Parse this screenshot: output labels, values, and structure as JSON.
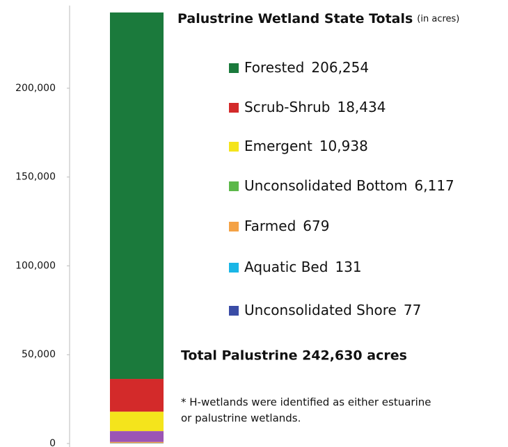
{
  "chart_data": {
    "type": "bar",
    "stacked": true,
    "title": "Palustrine Wetland State Totals",
    "subtitle": "(in acres)",
    "categories": [
      null
    ],
    "series": [
      {
        "name": "Forested",
        "color": "#1b7a3c",
        "bar_color": "#1b7a3c",
        "values": [
          206254
        ],
        "value_labels": [
          "206,254"
        ]
      },
      {
        "name": "Scrub-Shrub",
        "color": "#d32a2a",
        "bar_color": "#d32a2a",
        "values": [
          18434
        ],
        "value_labels": [
          "18,434"
        ]
      },
      {
        "name": "Emergent",
        "color": "#f4e41c",
        "bar_color": "#f4e41c",
        "values": [
          10938
        ],
        "value_labels": [
          "10,938"
        ]
      },
      {
        "name": "Unconsolidated Bottom",
        "color": "#5cb84a",
        "bar_color": "#9b55b5",
        "values": [
          6117
        ],
        "value_labels": [
          "6,117"
        ]
      },
      {
        "name": "Farmed",
        "color": "#f4a245",
        "bar_color": "#f4a245",
        "values": [
          679
        ]
      },
      {
        "name": "Aquatic Bed",
        "color": "#1ab6e6",
        "bar_color": "#1ab6e6",
        "values": [
          131
        ]
      },
      {
        "name": "Unconsolidated Shore",
        "color": "#3a4ca6",
        "bar_color": "#3a4ca6",
        "values": [
          77
        ]
      }
    ],
    "ylim": [
      0,
      243000
    ],
    "yticks": [
      0,
      {
        "value": 50000,
        "label": "50,000"
      },
      {
        "value": 100000,
        "label": "100,000"
      },
      {
        "value": 150000,
        "label": "150,000"
      },
      {
        "value": 200000,
        "label": "200,000"
      }
    ],
    "annotations": [
      "Total Palustrine 242,630 acres",
      "* H-wetlands were identified as either estuarine",
      "or palustrine wetlands."
    ]
  }
}
